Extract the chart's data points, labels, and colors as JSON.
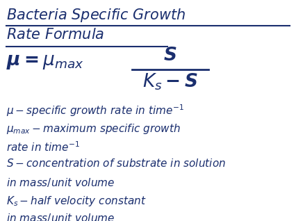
{
  "title_line1": "Bacteria Specific Growth",
  "title_line2": "Rate Formula",
  "text_color": "#1a2e6e",
  "background_color": "#ffffff",
  "figsize": [
    4.26,
    3.18
  ],
  "dpi": 100,
  "title_fontsize": 15,
  "formula_fontsize": 19,
  "desc_fontsize": 11
}
